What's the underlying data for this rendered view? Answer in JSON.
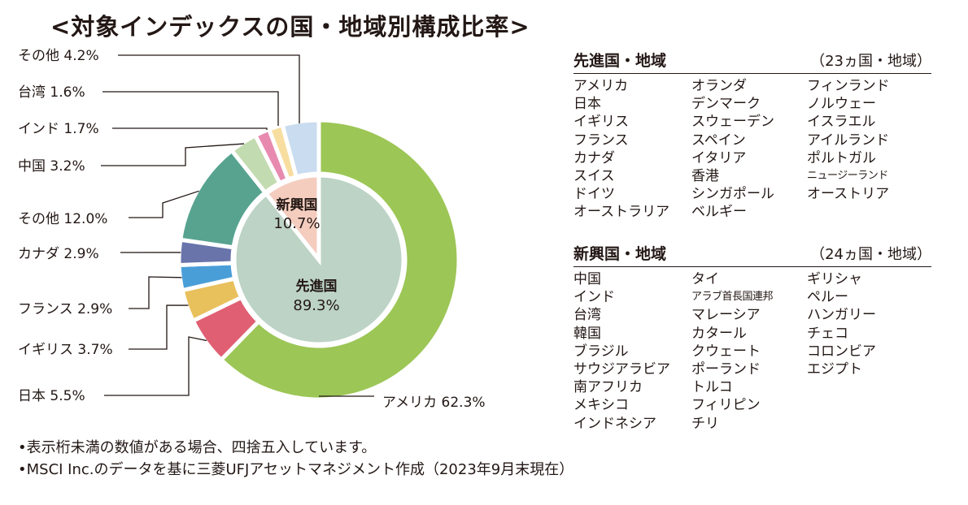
{
  "title": "<対象インデックスの国・地域別構成比率>",
  "chart_data": {
    "type": "pie",
    "outer_ring": [
      {
        "name": "アメリカ",
        "label": "アメリカ 62.3%",
        "value": 62.3,
        "color": "#9cc656"
      },
      {
        "name": "日本",
        "label": "日本 5.5%",
        "value": 5.5,
        "color": "#e05f72"
      },
      {
        "name": "イギリス",
        "label": "イギリス 3.7%",
        "value": 3.7,
        "color": "#e8c05c"
      },
      {
        "name": "フランス",
        "label": "フランス 2.9%",
        "value": 2.9,
        "color": "#4a9ed8"
      },
      {
        "name": "カナダ",
        "label": "カナダ 2.9%",
        "value": 2.9,
        "color": "#6874aa"
      },
      {
        "name": "その他",
        "label": "その他 12.0%",
        "value": 12.0,
        "color": "#57a390"
      },
      {
        "name": "中国",
        "label": "中国 3.2%",
        "value": 3.2,
        "color": "#c3dbb0"
      },
      {
        "name": "インド",
        "label": "インド 1.7%",
        "value": 1.7,
        "color": "#e88ab0"
      },
      {
        "name": "台湾",
        "label": "台湾 1.6%",
        "value": 1.6,
        "color": "#f7dea0"
      },
      {
        "name": "その他",
        "label": "その他 4.2%",
        "value": 4.2,
        "color": "#cadcef"
      }
    ],
    "inner_ring": [
      {
        "name": "先進国",
        "pct": "89.3%",
        "value": 89.3,
        "color": "#bcd3c5"
      },
      {
        "name": "新興国",
        "pct": "10.7%",
        "value": 10.7,
        "color": "#f4cdbf"
      }
    ]
  },
  "developed": {
    "title": "先進国・地域",
    "count": "（23ヵ国・地域）",
    "columns": [
      [
        "アメリカ",
        "日本",
        "イギリス",
        "フランス",
        "カナダ",
        "スイス",
        "ドイツ",
        "オーストラリア"
      ],
      [
        "オランダ",
        "デンマーク",
        "スウェーデン",
        "スペイン",
        "イタリア",
        "香港",
        "シンガポール",
        "ベルギー"
      ],
      [
        "フィンランド",
        "ノルウェー",
        "イスラエル",
        "アイルランド",
        "ポルトガル",
        "ニュージーランド",
        "オーストリア"
      ]
    ]
  },
  "emerging": {
    "title": "新興国・地域",
    "count": "（24ヵ国・地域）",
    "columns": [
      [
        "中国",
        "インド",
        "台湾",
        "韓国",
        "ブラジル",
        "サウジアラビア",
        "南アフリカ",
        "メキシコ",
        "インドネシア"
      ],
      [
        "タイ",
        "アラブ首長国連邦",
        "マレーシア",
        "カタール",
        "クウェート",
        "ポーランド",
        "トルコ",
        "フィリピン",
        "チリ"
      ],
      [
        "ギリシャ",
        "ペルー",
        "ハンガリー",
        "チェコ",
        "コロンビア",
        "エジプト"
      ]
    ]
  },
  "notes": [
    "•表示桁未満の数値がある場合、四捨五入しています。",
    "•MSCI Inc.のデータを基に三菱UFJアセットマネジメント作成（2023年9月末現在）"
  ]
}
